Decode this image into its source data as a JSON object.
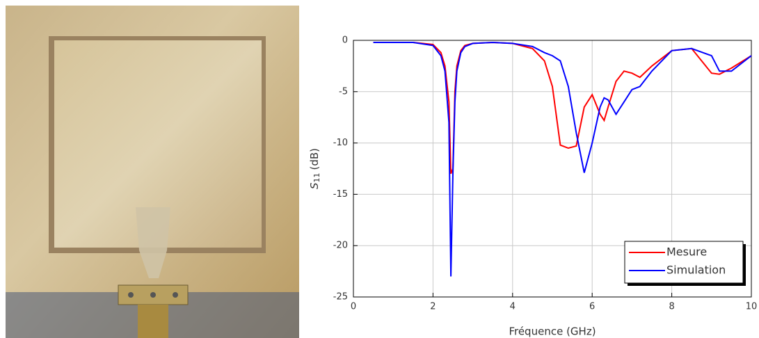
{
  "chart_data": {
    "type": "line",
    "xlabel": "Fréquence (GHz)",
    "ylabel_parts": [
      "S",
      "11",
      "(dB)"
    ],
    "x": [
      0.5,
      1,
      1.5,
      2,
      2.2,
      2.3,
      2.4,
      2.45,
      2.5,
      2.55,
      2.6,
      2.7,
      2.8,
      3,
      3.5,
      4,
      4.5,
      4.8,
      5,
      5.2,
      5.4,
      5.6,
      5.8,
      6,
      6.2,
      6.3,
      6.4,
      6.6,
      6.8,
      7,
      7.2,
      7.5,
      8,
      8.5,
      9,
      9.2,
      9.5,
      10
    ],
    "series": [
      {
        "name": "Mesure",
        "color": "#ff0000",
        "values": [
          -0.2,
          -0.2,
          -0.2,
          -0.4,
          -1.2,
          -2.5,
          -6,
          -13,
          -12.5,
          -5,
          -2.5,
          -1,
          -0.5,
          -0.3,
          -0.2,
          -0.3,
          -0.8,
          -2,
          -4.5,
          -10.2,
          -10.5,
          -10.3,
          -6.5,
          -5.3,
          -7.2,
          -7.8,
          -6.5,
          -4,
          -3,
          -3.2,
          -3.6,
          -2.5,
          -1,
          -0.8,
          -3.2,
          -3.3,
          -2.7,
          -1.5
        ]
      },
      {
        "name": "Simulation",
        "color": "#0000ff",
        "values": [
          -0.2,
          -0.2,
          -0.2,
          -0.5,
          -1.5,
          -3,
          -8,
          -23,
          -13,
          -6,
          -3,
          -1.2,
          -0.6,
          -0.3,
          -0.2,
          -0.3,
          -0.6,
          -1.2,
          -1.5,
          -2,
          -4.5,
          -9,
          -12.9,
          -10,
          -6.5,
          -5.6,
          -5.8,
          -7.2,
          -6,
          -4.8,
          -4.5,
          -3,
          -1,
          -0.8,
          -1.5,
          -3,
          -3,
          -1.5
        ]
      }
    ],
    "xlim": [
      0,
      10
    ],
    "xticks": [
      0,
      2,
      4,
      6,
      8,
      10
    ],
    "ylim": [
      -25,
      0
    ],
    "yticks": [
      -25,
      -20,
      -15,
      -10,
      -5,
      0
    ],
    "grid": true,
    "legend": "lower right"
  }
}
